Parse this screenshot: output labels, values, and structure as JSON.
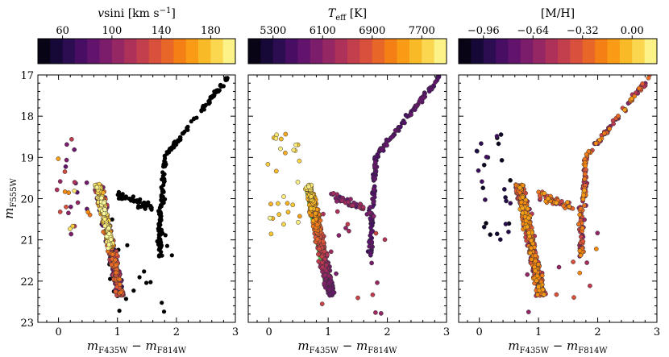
{
  "chart_data": [
    {
      "type": "scatter",
      "panel": "left",
      "colorbar": {
        "label": "vsini [km s⁻¹]",
        "label_main": "v",
        "label_rest": "sini [km s",
        "label_exp": "−1",
        "label_end": "]",
        "range": [
          40,
          200
        ],
        "ticks": [
          60,
          100,
          140,
          180
        ],
        "tick_labels": [
          "60",
          "100",
          "140",
          "180"
        ],
        "bins": 16,
        "colormap": "inferno-like"
      },
      "xlim": [
        -0.35,
        3.0
      ],
      "ylim": [
        23,
        17
      ],
      "xticks": [
        0,
        1,
        2,
        3
      ],
      "xtick_labels": [
        "0",
        "1",
        "2",
        "3"
      ],
      "yticks": [
        17,
        18,
        19,
        20,
        21,
        22,
        23
      ],
      "ytick_labels": [
        "17",
        "18",
        "19",
        "20",
        "21",
        "22",
        "23"
      ],
      "xlabel": "m_F435W − m_F814W",
      "xlabel_main": "m",
      "xlabel_sub1": "F435W",
      "xlabel_mid": " − m",
      "xlabel_sub2": "F814W",
      "ylabel": "m_F555W",
      "ylabel_main": "m",
      "ylabel_sub": "F555W",
      "background_color": "#000000",
      "seed": 17
    },
    {
      "type": "scatter",
      "panel": "middle",
      "colorbar": {
        "label": "T_eff [K]",
        "label_main": "T",
        "label_sub": "eff",
        "label_end": " [K]",
        "range": [
          4900,
          8100
        ],
        "ticks": [
          5300,
          6100,
          6900,
          7700
        ],
        "tick_labels": [
          "5300",
          "6100",
          "6900",
          "7700"
        ],
        "bins": 16,
        "colormap": "inferno-like"
      },
      "xlim": [
        -0.35,
        3.0
      ],
      "ylim": [
        23,
        17
      ],
      "xticks": [
        0,
        1,
        2,
        3
      ],
      "xtick_labels": [
        "0",
        "1",
        "2",
        "3"
      ],
      "xlabel": "m_F435W − m_F814W",
      "xlabel_main": "m",
      "xlabel_sub1": "F435W",
      "xlabel_mid": " − m",
      "xlabel_sub2": "F814W",
      "highlight_color": "#3ab02a",
      "seed": 29
    },
    {
      "type": "scatter",
      "panel": "right",
      "colorbar": {
        "label": "[M/H]",
        "range": [
          -1.12,
          0.16
        ],
        "ticks": [
          -0.96,
          -0.64,
          -0.32,
          0.0
        ],
        "tick_labels": [
          "−0.96",
          "−0.64",
          "−0.32",
          "0.00"
        ],
        "bins": 16,
        "colormap": "inferno-like"
      },
      "xlim": [
        -0.35,
        3.0
      ],
      "ylim": [
        23,
        17
      ],
      "xticks": [
        0,
        1,
        2,
        3
      ],
      "xtick_labels": [
        "0",
        "1",
        "2",
        "3"
      ],
      "xlabel": "m_F435W − m_F814W",
      "xlabel_main": "m",
      "xlabel_sub1": "F435W",
      "xlabel_mid": " − m",
      "xlabel_sub2": "F814W",
      "seed": 41
    }
  ]
}
